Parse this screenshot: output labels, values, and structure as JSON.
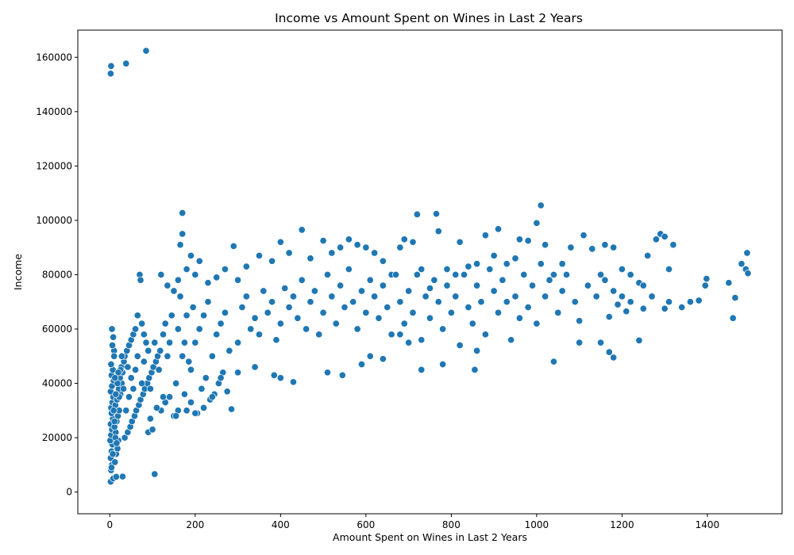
{
  "chart_data": {
    "type": "scatter",
    "title": "Income vs Amount Spent on Wines in Last 2 Years",
    "xlabel": "Amount Spent on Wines in Last 2 Years",
    "ylabel": "Income",
    "xlim": [
      -75,
      1575
    ],
    "ylim": [
      -8000,
      170000
    ],
    "xticks": [
      0,
      200,
      400,
      600,
      800,
      1000,
      1200,
      1400
    ],
    "yticks": [
      0,
      20000,
      40000,
      60000,
      80000,
      100000,
      120000,
      140000,
      160000
    ],
    "grid": false,
    "color": "#1f77b4",
    "points": [
      [
        2,
        154000
      ],
      [
        3,
        156800
      ],
      [
        38,
        157700
      ],
      [
        85,
        162400
      ],
      [
        170,
        102700
      ],
      [
        1010,
        105500
      ],
      [
        720,
        102200
      ],
      [
        765,
        102400
      ],
      [
        105,
        6600
      ],
      [
        30,
        5700
      ],
      [
        2,
        3800
      ],
      [
        8,
        5000
      ],
      [
        15,
        5600
      ],
      [
        3,
        8000
      ],
      [
        5,
        10000
      ],
      [
        2,
        12500
      ],
      [
        4,
        15000
      ],
      [
        6,
        17500
      ],
      [
        1,
        19000
      ],
      [
        3,
        21000
      ],
      [
        5,
        23000
      ],
      [
        2,
        25000
      ],
      [
        7,
        27000
      ],
      [
        4,
        29000
      ],
      [
        3,
        31000
      ],
      [
        6,
        33000
      ],
      [
        8,
        35000
      ],
      [
        2,
        37000
      ],
      [
        5,
        39000
      ],
      [
        9,
        41000
      ],
      [
        4,
        43000
      ],
      [
        7,
        45000
      ],
      [
        3,
        47000
      ],
      [
        10,
        52000
      ],
      [
        6,
        54000
      ],
      [
        8,
        57000
      ],
      [
        5,
        60000
      ],
      [
        12,
        11000
      ],
      [
        15,
        14000
      ],
      [
        18,
        16000
      ],
      [
        20,
        19000
      ],
      [
        14,
        22000
      ],
      [
        11,
        24000
      ],
      [
        16,
        26000
      ],
      [
        19,
        28000
      ],
      [
        22,
        30000
      ],
      [
        13,
        32000
      ],
      [
        17,
        34000
      ],
      [
        25,
        36000
      ],
      [
        21,
        38000
      ],
      [
        28,
        40000
      ],
      [
        24,
        42000
      ],
      [
        30,
        44000
      ],
      [
        27,
        46000
      ],
      [
        33,
        48000
      ],
      [
        35,
        50000
      ],
      [
        40,
        52000
      ],
      [
        45,
        54000
      ],
      [
        50,
        56000
      ],
      [
        55,
        58000
      ],
      [
        60,
        60000
      ],
      [
        35,
        20000
      ],
      [
        42,
        22000
      ],
      [
        48,
        24000
      ],
      [
        52,
        26000
      ],
      [
        58,
        28000
      ],
      [
        62,
        30000
      ],
      [
        68,
        32000
      ],
      [
        72,
        34000
      ],
      [
        78,
        36000
      ],
      [
        82,
        38000
      ],
      [
        88,
        40000
      ],
      [
        92,
        42000
      ],
      [
        98,
        44000
      ],
      [
        102,
        46000
      ],
      [
        108,
        48000
      ],
      [
        112,
        50000
      ],
      [
        118,
        52000
      ],
      [
        70,
        80000
      ],
      [
        72,
        78000
      ],
      [
        65,
        65000
      ],
      [
        75,
        62000
      ],
      [
        80,
        58000
      ],
      [
        85,
        55000
      ],
      [
        90,
        22000
      ],
      [
        100,
        23000
      ],
      [
        95,
        27000
      ],
      [
        120,
        30000
      ],
      [
        130,
        33000
      ],
      [
        140,
        35000
      ],
      [
        150,
        28000
      ],
      [
        160,
        30000
      ],
      [
        175,
        36000
      ],
      [
        180,
        30000
      ],
      [
        190,
        33000
      ],
      [
        205,
        29000
      ],
      [
        215,
        38000
      ],
      [
        225,
        42000
      ],
      [
        235,
        34000
      ],
      [
        245,
        36000
      ],
      [
        255,
        40000
      ],
      [
        265,
        44000
      ],
      [
        275,
        37000
      ],
      [
        285,
        30500
      ],
      [
        290,
        90500
      ],
      [
        165,
        91000
      ],
      [
        170,
        95000
      ],
      [
        190,
        87000
      ],
      [
        210,
        85000
      ],
      [
        120,
        80000
      ],
      [
        135,
        76000
      ],
      [
        150,
        74000
      ],
      [
        160,
        78000
      ],
      [
        180,
        82000
      ],
      [
        200,
        80000
      ],
      [
        230,
        77000
      ],
      [
        250,
        79000
      ],
      [
        270,
        82000
      ],
      [
        300,
        78000
      ],
      [
        320,
        83000
      ],
      [
        350,
        87000
      ],
      [
        380,
        85000
      ],
      [
        400,
        92000
      ],
      [
        420,
        88000
      ],
      [
        450,
        96500
      ],
      [
        470,
        86000
      ],
      [
        500,
        92500
      ],
      [
        520,
        88000
      ],
      [
        540,
        90000
      ],
      [
        560,
        93000
      ],
      [
        580,
        91000
      ],
      [
        600,
        90000
      ],
      [
        620,
        88000
      ],
      [
        640,
        85000
      ],
      [
        660,
        80000
      ],
      [
        680,
        90000
      ],
      [
        690,
        93000
      ],
      [
        710,
        92000
      ],
      [
        730,
        82000
      ],
      [
        750,
        75000
      ],
      [
        770,
        96000
      ],
      [
        790,
        82000
      ],
      [
        810,
        80000
      ],
      [
        820,
        92000
      ],
      [
        840,
        83000
      ],
      [
        860,
        84000
      ],
      [
        880,
        94500
      ],
      [
        900,
        87000
      ],
      [
        910,
        96800
      ],
      [
        930,
        84000
      ],
      [
        950,
        86000
      ],
      [
        960,
        93000
      ],
      [
        980,
        92500
      ],
      [
        1000,
        99000
      ],
      [
        1020,
        91000
      ],
      [
        1040,
        80000
      ],
      [
        1060,
        84000
      ],
      [
        1080,
        90000
      ],
      [
        1110,
        94500
      ],
      [
        1130,
        89500
      ],
      [
        1150,
        80000
      ],
      [
        1160,
        91000
      ],
      [
        1180,
        90000
      ],
      [
        1200,
        82000
      ],
      [
        1220,
        80000
      ],
      [
        1240,
        77000
      ],
      [
        1260,
        87000
      ],
      [
        1280,
        93000
      ],
      [
        1290,
        95000
      ],
      [
        1300,
        94000
      ],
      [
        1310,
        82000
      ],
      [
        1320,
        91000
      ],
      [
        1340,
        68000
      ],
      [
        1360,
        70000
      ],
      [
        1380,
        70500
      ],
      [
        1395,
        76000
      ],
      [
        1398,
        78500
      ],
      [
        1450,
        77000
      ],
      [
        1460,
        64000
      ],
      [
        1465,
        71500
      ],
      [
        1480,
        84000
      ],
      [
        1490,
        82000
      ],
      [
        1495,
        80500
      ],
      [
        1493,
        88000
      ],
      [
        1040,
        48000
      ],
      [
        1100,
        55000
      ],
      [
        1150,
        55000
      ],
      [
        1170,
        51500
      ],
      [
        1180,
        49500
      ],
      [
        1240,
        55800
      ],
      [
        1170,
        64500
      ],
      [
        1190,
        69000
      ],
      [
        1210,
        66500
      ],
      [
        1250,
        67500
      ],
      [
        1300,
        67500
      ],
      [
        1310,
        70000
      ],
      [
        855,
        45000
      ],
      [
        860,
        52000
      ],
      [
        780,
        47000
      ],
      [
        730,
        45000
      ],
      [
        700,
        55000
      ],
      [
        680,
        58000
      ],
      [
        640,
        49000
      ],
      [
        610,
        50000
      ],
      [
        590,
        47000
      ],
      [
        545,
        43000
      ],
      [
        510,
        44000
      ],
      [
        430,
        40500
      ],
      [
        385,
        43000
      ],
      [
        400,
        42000
      ],
      [
        340,
        46000
      ],
      [
        300,
        44000
      ],
      [
        260,
        42000
      ],
      [
        240,
        35000
      ],
      [
        220,
        31000
      ],
      [
        200,
        29000
      ],
      [
        110,
        31000
      ],
      [
        125,
        35000
      ],
      [
        155,
        28000
      ],
      [
        200,
        55000
      ],
      [
        210,
        60000
      ],
      [
        220,
        65000
      ],
      [
        230,
        70000
      ],
      [
        240,
        50000
      ],
      [
        250,
        58000
      ],
      [
        260,
        62000
      ],
      [
        270,
        66000
      ],
      [
        280,
        52000
      ],
      [
        300,
        55000
      ],
      [
        310,
        68000
      ],
      [
        320,
        72000
      ],
      [
        330,
        60000
      ],
      [
        340,
        64000
      ],
      [
        350,
        58000
      ],
      [
        360,
        74000
      ],
      [
        370,
        66000
      ],
      [
        380,
        70000
      ],
      [
        390,
        56000
      ],
      [
        400,
        62000
      ],
      [
        410,
        75000
      ],
      [
        420,
        68000
      ],
      [
        430,
        72000
      ],
      [
        440,
        64000
      ],
      [
        450,
        78000
      ],
      [
        460,
        60000
      ],
      [
        470,
        70000
      ],
      [
        480,
        74000
      ],
      [
        490,
        58000
      ],
      [
        500,
        66000
      ],
      [
        510,
        80000
      ],
      [
        520,
        72000
      ],
      [
        530,
        62000
      ],
      [
        540,
        76000
      ],
      [
        550,
        68000
      ],
      [
        560,
        82000
      ],
      [
        570,
        70000
      ],
      [
        580,
        60000
      ],
      [
        590,
        74000
      ],
      [
        600,
        66000
      ],
      [
        610,
        78000
      ],
      [
        620,
        72000
      ],
      [
        630,
        64000
      ],
      [
        640,
        76000
      ],
      [
        650,
        68000
      ],
      [
        660,
        58000
      ],
      [
        670,
        80000
      ],
      [
        680,
        70000
      ],
      [
        690,
        62000
      ],
      [
        700,
        74000
      ],
      [
        710,
        66000
      ],
      [
        720,
        80000
      ],
      [
        730,
        56000
      ],
      [
        740,
        72000
      ],
      [
        750,
        64000
      ],
      [
        760,
        78000
      ],
      [
        770,
        70000
      ],
      [
        780,
        60000
      ],
      [
        790,
        76000
      ],
      [
        800,
        66000
      ],
      [
        810,
        72000
      ],
      [
        820,
        54000
      ],
      [
        830,
        80000
      ],
      [
        840,
        68000
      ],
      [
        850,
        62000
      ],
      [
        860,
        76000
      ],
      [
        870,
        70000
      ],
      [
        880,
        58000
      ],
      [
        890,
        82000
      ],
      [
        900,
        74000
      ],
      [
        910,
        66000
      ],
      [
        920,
        78000
      ],
      [
        930,
        70000
      ],
      [
        940,
        56000
      ],
      [
        950,
        72000
      ],
      [
        960,
        64000
      ],
      [
        970,
        80000
      ],
      [
        980,
        68000
      ],
      [
        990,
        76000
      ],
      [
        1000,
        62000
      ],
      [
        1010,
        84000
      ],
      [
        1020,
        72000
      ],
      [
        1030,
        78000
      ],
      [
        1050,
        66000
      ],
      [
        1060,
        74000
      ],
      [
        1070,
        80000
      ],
      [
        1090,
        70000
      ],
      [
        1100,
        63000
      ],
      [
        1120,
        76000
      ],
      [
        1140,
        72000
      ],
      [
        1160,
        78000
      ],
      [
        1180,
        74000
      ],
      [
        1200,
        72000
      ],
      [
        1220,
        70000
      ],
      [
        1250,
        76000
      ],
      [
        1270,
        72000
      ],
      [
        160,
        60000
      ],
      [
        170,
        50000
      ],
      [
        180,
        65000
      ],
      [
        190,
        45000
      ],
      [
        140,
        55000
      ],
      [
        130,
        62000
      ],
      [
        115,
        45000
      ],
      [
        125,
        58000
      ],
      [
        135,
        50000
      ],
      [
        145,
        65000
      ],
      [
        155,
        40000
      ],
      [
        165,
        72000
      ],
      [
        175,
        55000
      ],
      [
        185,
        48000
      ],
      [
        195,
        68000
      ],
      [
        60,
        45000
      ],
      [
        65,
        50000
      ],
      [
        75,
        40000
      ],
      [
        80,
        48000
      ],
      [
        90,
        52000
      ],
      [
        95,
        38000
      ],
      [
        105,
        55000
      ],
      [
        45,
        35000
      ],
      [
        50,
        42000
      ],
      [
        55,
        38000
      ],
      [
        25,
        45000
      ],
      [
        28,
        50000
      ],
      [
        32,
        38000
      ],
      [
        38,
        30000
      ],
      [
        42,
        46000
      ],
      [
        18,
        40000
      ],
      [
        20,
        44000
      ],
      [
        22,
        35000
      ],
      [
        10,
        50000
      ],
      [
        12,
        42000
      ],
      [
        14,
        36000
      ],
      [
        9,
        30000
      ],
      [
        11,
        26000
      ],
      [
        13,
        20000
      ],
      [
        16,
        18000
      ],
      [
        7,
        14000
      ],
      [
        4,
        9000
      ]
    ]
  }
}
